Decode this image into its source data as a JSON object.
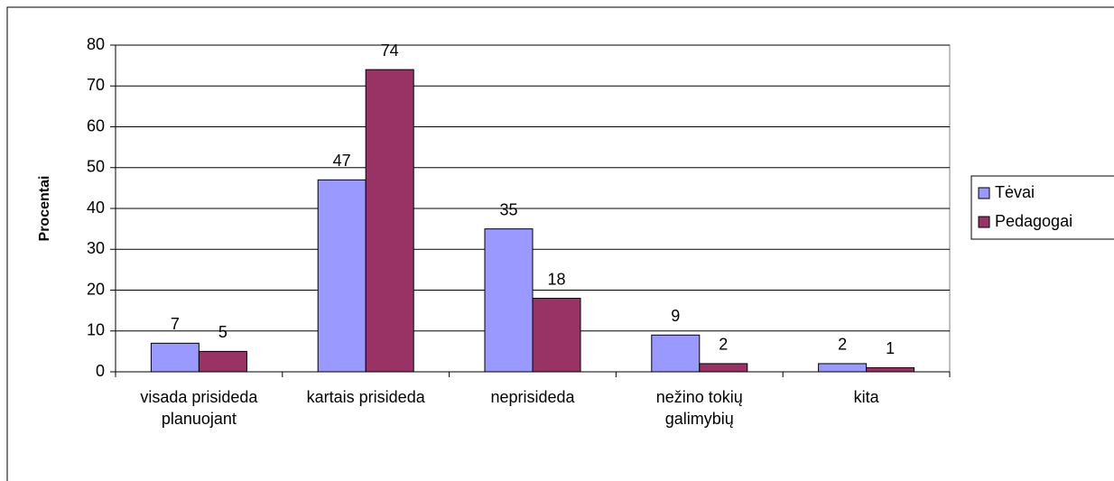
{
  "chart_data": {
    "type": "bar",
    "y_label": "Procentai",
    "categories": [
      "visada prisideda planuojant",
      "kartais prisideda",
      "neprisideda",
      "nežino tokių galimybių",
      "kita"
    ],
    "series": [
      {
        "name": "Tėvai",
        "color": "#9999ff",
        "values": [
          7,
          47,
          35,
          9,
          2
        ]
      },
      {
        "name": "Pedagogai",
        "color": "#993366",
        "values": [
          5,
          74,
          18,
          2,
          1
        ]
      }
    ],
    "ylim": [
      0,
      80
    ],
    "yticks": [
      0,
      10,
      20,
      30,
      40,
      50,
      60,
      70,
      80
    ],
    "grid": true,
    "legend": "right"
  }
}
